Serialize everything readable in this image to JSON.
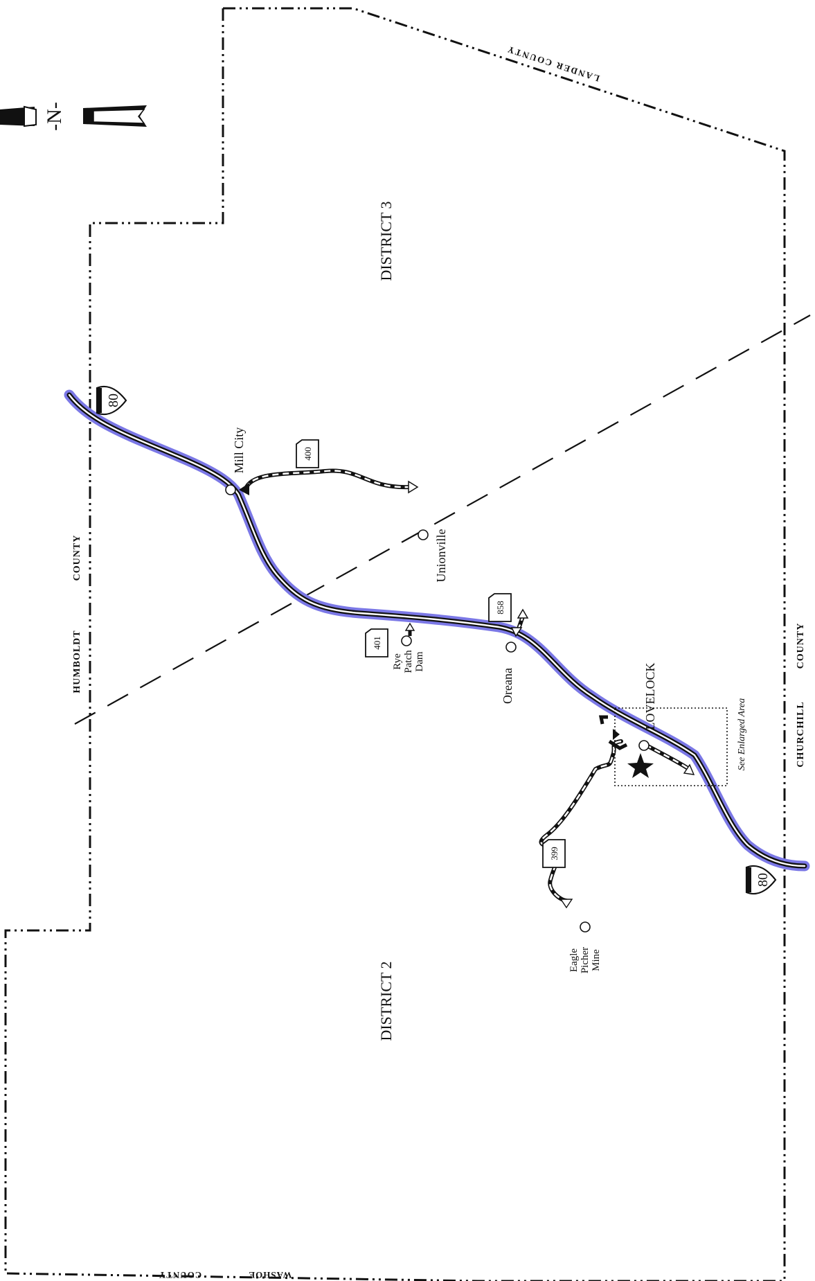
{
  "map": {
    "districts": {
      "district_3": "DISTRICT 3",
      "district_2": "DISTRICT 2"
    },
    "counties": {
      "lander": "LANDER COUNTY",
      "humboldt_1": "HUMBOLDT",
      "humboldt_2": "COUNTY",
      "churchill_1": "CHURCHILL",
      "churchill_2": "COUNTY",
      "washoe_1": "WASHOE",
      "washoe_2": "COUNTY"
    },
    "places": {
      "mill_city": "Mill City",
      "unionville": "Unionville",
      "oreana": "Oreana",
      "lovelock": "LOVELOCK",
      "rye_1": "Rye",
      "rye_2": "Patch",
      "rye_3": "Dam",
      "eagle_1": "Eagle",
      "eagle_2": "Picher",
      "eagle_3": "Mine"
    },
    "routes": {
      "interstate_north": "80",
      "interstate_south": "80",
      "sr_400": "400",
      "sr_401": "401",
      "sr_858": "858",
      "sr_399": "399"
    },
    "note": "See Enlarged Area",
    "north_label": "-N-",
    "colors": {
      "highway_glow": "#7b78e6",
      "ink": "#111111",
      "background": "#ffffff"
    }
  }
}
